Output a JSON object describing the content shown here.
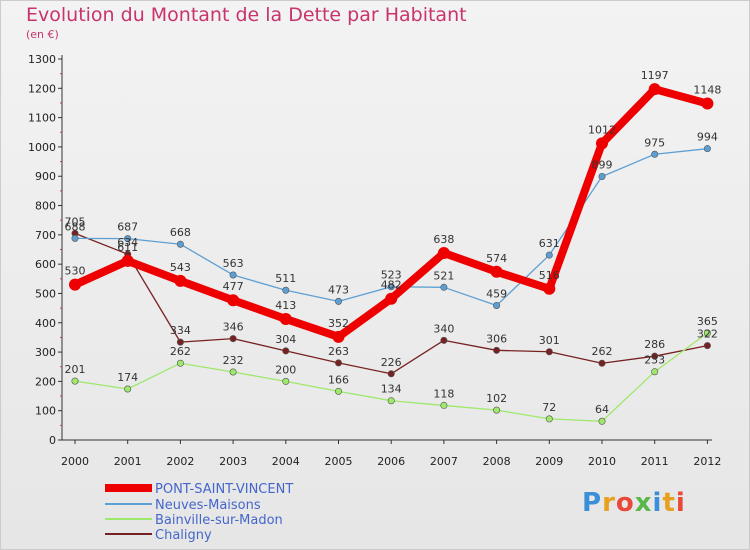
{
  "title": "Evolution du Montant de la Dette par Habitant",
  "unit": "(en €)",
  "logo_text": "Proxiti",
  "chart_data": {
    "type": "line",
    "title": "Evolution du Montant de la Dette par Habitant",
    "subtitle": "(en €)",
    "xlabel": "",
    "ylabel": "",
    "x": [
      "2000",
      "2001",
      "2002",
      "2003",
      "2004",
      "2005",
      "2006",
      "2007",
      "2008",
      "2009",
      "2010",
      "2011",
      "2012"
    ],
    "ylim": [
      0,
      1300
    ],
    "yticks": [
      0,
      100,
      200,
      300,
      400,
      500,
      600,
      700,
      800,
      900,
      1000,
      1100,
      1200,
      1300
    ],
    "grid": false,
    "legend_position": "bottom-left",
    "series": [
      {
        "name": "PONT-SAINT-VINCENT",
        "color": "#ee0000",
        "values": [
          530,
          611,
          543,
          477,
          413,
          352,
          482,
          638,
          574,
          516,
          1012,
          1197,
          1148
        ]
      },
      {
        "name": "Neuves-Maisons",
        "color": "#5e9fd3",
        "values": [
          688,
          687,
          668,
          563,
          511,
          473,
          523,
          521,
          459,
          631,
          899,
          975,
          994
        ]
      },
      {
        "name": "Bainville-sur-Madon",
        "color": "#9ee86b",
        "values": [
          201,
          174,
          262,
          232,
          200,
          166,
          134,
          118,
          102,
          72,
          64,
          233,
          365
        ]
      },
      {
        "name": "Chaligny",
        "color": "#772222",
        "values": [
          705,
          634,
          334,
          346,
          304,
          263,
          226,
          340,
          306,
          301,
          262,
          286,
          322
        ]
      }
    ]
  }
}
